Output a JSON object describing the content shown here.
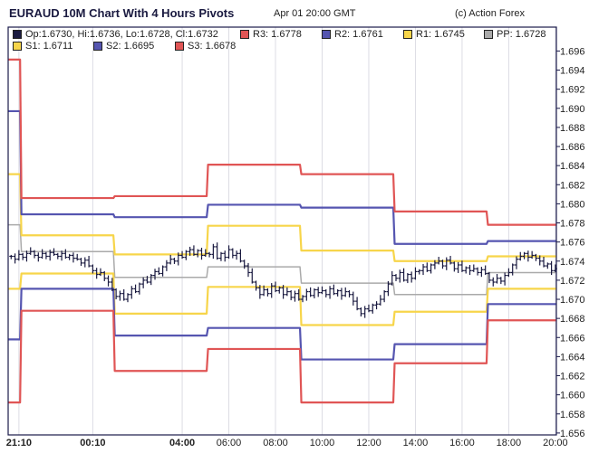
{
  "header": {
    "title": "EURAUD 10M Chart With 4 Hours Pivots",
    "timestamp": "Apr 01 20:00 GMT",
    "credit": "(c) Action Forex"
  },
  "legend": {
    "ohlc": "Op:1.6730, Hi:1.6736, Lo:1.6728, Cl:1.6732",
    "R3": "R3: 1.6778",
    "R2": "R2: 1.6761",
    "R1": "R1: 1.6745",
    "PP": "PP: 1.6728",
    "S1": "S1: 1.6711",
    "S2": "S2: 1.6695",
    "S3": "S3: 1.6678"
  },
  "colors": {
    "bars": "#1a1a40",
    "R3": "#e05555",
    "S3": "#e05555",
    "R2": "#5555b0",
    "S2": "#5555b0",
    "R1": "#f7d54a",
    "S1": "#f7d54a",
    "PP": "#aaaaaa",
    "frame": "#1a1a4a",
    "grid": "#dcdce4"
  },
  "chart_data": {
    "type": "ohlc-bar with pivot step lines",
    "title": "EURAUD 10M Chart With 4 Hours Pivots",
    "ylim": [
      1.6558,
      1.6985
    ],
    "y_ticks": [
      1.656,
      1.658,
      1.66,
      1.662,
      1.664,
      1.666,
      1.668,
      1.67,
      1.672,
      1.674,
      1.676,
      1.678,
      1.68,
      1.682,
      1.684,
      1.686,
      1.688,
      1.69,
      1.692,
      1.694,
      1.696
    ],
    "x_bar_count": 142,
    "x_ticks": [
      {
        "bar": 3,
        "label": "21:10",
        "bold": true
      },
      {
        "bar": 22,
        "label": "00:10",
        "bold": true
      },
      {
        "bar": 45,
        "label": "04:00",
        "bold": true
      },
      {
        "bar": 57,
        "label": "06:00",
        "bold": false
      },
      {
        "bar": 69,
        "label": "08:00",
        "bold": false
      },
      {
        "bar": 81,
        "label": "10:00",
        "bold": false
      },
      {
        "bar": 93,
        "label": "12:00",
        "bold": false
      },
      {
        "bar": 105,
        "label": "14:00",
        "bold": false
      },
      {
        "bar": 117,
        "label": "16:00",
        "bold": false
      },
      {
        "bar": 129,
        "label": "18:00",
        "bold": false
      },
      {
        "bar": 141,
        "label": "20:00",
        "bold": false
      }
    ],
    "bar_pad": 0.0003,
    "close": [
      1.6745,
      1.6742,
      1.6747,
      1.6744,
      1.6748,
      1.675,
      1.6746,
      1.6744,
      1.6748,
      1.6745,
      1.6749,
      1.6747,
      1.6745,
      1.6748,
      1.6744,
      1.6746,
      1.6743,
      1.6742,
      1.6738,
      1.6741,
      1.6735,
      1.673,
      1.6726,
      1.6728,
      1.6722,
      1.6718,
      1.671,
      1.6703,
      1.6706,
      1.67,
      1.6705,
      1.6711,
      1.6708,
      1.6716,
      1.672,
      1.6718,
      1.6725,
      1.6729,
      1.6727,
      1.6734,
      1.6738,
      1.6742,
      1.674,
      1.6746,
      1.6744,
      1.675,
      1.6752,
      1.6747,
      1.6751,
      1.6746,
      1.6748,
      1.6747,
      1.6755,
      1.6743,
      1.6748,
      1.6744,
      1.6752,
      1.6746,
      1.6748,
      1.674,
      1.6735,
      1.6728,
      1.6718,
      1.6712,
      1.6705,
      1.671,
      1.6706,
      1.6714,
      1.6709,
      1.6712,
      1.6705,
      1.6708,
      1.6702,
      1.6706,
      1.67,
      1.6703,
      1.6708,
      1.6704,
      1.671,
      1.6707,
      1.6709,
      1.6705,
      1.6711,
      1.6706,
      1.6709,
      1.6704,
      1.6708,
      1.6705,
      1.6698,
      1.669,
      1.6685,
      1.669,
      1.6688,
      1.6694,
      1.6695,
      1.67,
      1.6708,
      1.6716,
      1.6725,
      1.6722,
      1.6728,
      1.672,
      1.6726,
      1.6722,
      1.6729,
      1.673,
      1.6734,
      1.673,
      1.6736,
      1.6738,
      1.674,
      1.6735,
      1.6741,
      1.6738,
      1.6732,
      1.6736,
      1.673,
      1.6733,
      1.673,
      1.6732,
      1.6728,
      1.6731,
      1.6727,
      1.672,
      1.6718,
      1.6722,
      1.6719,
      1.6725,
      1.6728,
      1.6736,
      1.6742,
      1.6745,
      1.6748,
      1.6744,
      1.6746,
      1.6743,
      1.674,
      1.6735,
      1.6737,
      1.673,
      1.6732
    ],
    "pivots": [
      {
        "start_bar": 0,
        "R3": 1.6951,
        "R2": 1.6897,
        "R1": 1.6831,
        "PP": 1.6778,
        "S1": 1.6711,
        "S2": 1.6658,
        "S3": 1.6592
      },
      {
        "start_bar": 4,
        "R3": 1.6806,
        "R2": 1.6789,
        "R1": 1.6767,
        "PP": 1.675,
        "S1": 1.6727,
        "S2": 1.6711,
        "S3": 1.6688
      },
      {
        "start_bar": 28,
        "R3": 1.6808,
        "R2": 1.6786,
        "R1": 1.6747,
        "PP": 1.6723,
        "S1": 1.6685,
        "S2": 1.6662,
        "S3": 1.6625
      },
      {
        "start_bar": 52,
        "R3": 1.6841,
        "R2": 1.6799,
        "R1": 1.6777,
        "PP": 1.6734,
        "S1": 1.6713,
        "S2": 1.667,
        "S3": 1.6648
      },
      {
        "start_bar": 76,
        "R3": 1.6831,
        "R2": 1.6796,
        "R1": 1.6751,
        "PP": 1.6717,
        "S1": 1.6673,
        "S2": 1.6637,
        "S3": 1.6592
      },
      {
        "start_bar": 100,
        "R3": 1.6792,
        "R2": 1.6758,
        "R1": 1.674,
        "PP": 1.6705,
        "S1": 1.6687,
        "S2": 1.6653,
        "S3": 1.6633
      },
      {
        "start_bar": 124,
        "R3": 1.6778,
        "R2": 1.6761,
        "R1": 1.6745,
        "PP": 1.6728,
        "S1": 1.6711,
        "S2": 1.6695,
        "S3": 1.6678
      }
    ]
  }
}
